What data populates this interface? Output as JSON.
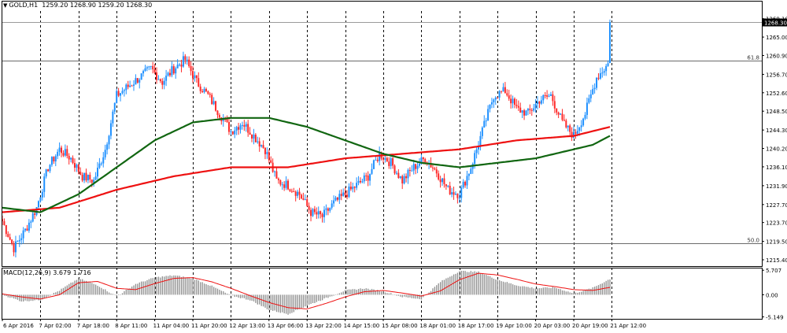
{
  "header": {
    "symbol": "GOLD,H1",
    "ohlc": "1259.20 1268.90 1259.20 1268.30"
  },
  "macd_header": {
    "label": "MACD(12,26,9) 3.679 1.716"
  },
  "chart_data": [
    {
      "type": "candlestick",
      "title": "GOLD,H1",
      "ylim": [
        1214.0,
        1270.8
      ],
      "price_ticks": [
        "1269.10",
        "1265.00",
        "1260.90",
        "1256.70",
        "1252.60",
        "1248.50",
        "1244.30",
        "1240.20",
        "1236.10",
        "1231.90",
        "1227.70",
        "1223.70",
        "1219.50",
        "1215.40"
      ],
      "current_price": "1268.30",
      "fib_levels": [
        {
          "label": "61.8",
          "value": 1259.7
        },
        {
          "label": "50.0",
          "value": 1219.0
        }
      ],
      "x_labels": [
        "6 Apr 2016",
        "7 Apr 02:00",
        "7 Apr 18:00",
        "8 Apr 11:00",
        "11 Apr 04:00",
        "11 Apr 20:00",
        "12 Apr 13:00",
        "13 Apr 06:00",
        "13 Apr 22:00",
        "14 Apr 15:00",
        "15 Apr 08:00",
        "18 Apr 01:00",
        "18 Apr 17:00",
        "19 Apr 10:00",
        "20 Apr 03:00",
        "20 Apr 19:00",
        "21 Apr 12:00"
      ],
      "anchors": [
        [
          0,
          1224
        ],
        [
          6,
          1218
        ],
        [
          12,
          1222
        ],
        [
          18,
          1227
        ],
        [
          24,
          1236
        ],
        [
          30,
          1240
        ],
        [
          36,
          1238
        ],
        [
          42,
          1234
        ],
        [
          48,
          1233
        ],
        [
          54,
          1240
        ],
        [
          60,
          1252
        ],
        [
          66,
          1254
        ],
        [
          72,
          1256
        ],
        [
          78,
          1258
        ],
        [
          84,
          1255
        ],
        [
          90,
          1258
        ],
        [
          96,
          1260
        ],
        [
          102,
          1255
        ],
        [
          108,
          1252
        ],
        [
          114,
          1248
        ],
        [
          120,
          1244
        ],
        [
          126,
          1246
        ],
        [
          132,
          1243
        ],
        [
          138,
          1240
        ],
        [
          144,
          1233
        ],
        [
          150,
          1232
        ],
        [
          156,
          1230
        ],
        [
          162,
          1226
        ],
        [
          168,
          1225
        ],
        [
          174,
          1228
        ],
        [
          180,
          1230
        ],
        [
          186,
          1232
        ],
        [
          192,
          1234
        ],
        [
          198,
          1239
        ],
        [
          204,
          1237
        ],
        [
          210,
          1233
        ],
        [
          216,
          1236
        ],
        [
          222,
          1238
        ],
        [
          228,
          1235
        ],
        [
          234,
          1231
        ],
        [
          240,
          1230
        ],
        [
          246,
          1236
        ],
        [
          252,
          1244
        ],
        [
          258,
          1252
        ],
        [
          264,
          1253
        ],
        [
          270,
          1249
        ],
        [
          276,
          1248
        ],
        [
          282,
          1251
        ],
        [
          288,
          1252
        ],
        [
          294,
          1246
        ],
        [
          300,
          1243
        ],
        [
          306,
          1248
        ],
        [
          312,
          1256
        ],
        [
          318,
          1259
        ],
        [
          319,
          1268.3
        ]
      ],
      "ma_red": [
        [
          0,
          1226
        ],
        [
          30,
          1227
        ],
        [
          60,
          1231
        ],
        [
          90,
          1234
        ],
        [
          120,
          1236
        ],
        [
          150,
          1236
        ],
        [
          180,
          1238
        ],
        [
          210,
          1239
        ],
        [
          240,
          1240
        ],
        [
          270,
          1242
        ],
        [
          300,
          1243
        ],
        [
          319,
          1245
        ]
      ],
      "ma_green": [
        [
          0,
          1227
        ],
        [
          20,
          1226
        ],
        [
          40,
          1230
        ],
        [
          60,
          1236
        ],
        [
          80,
          1242
        ],
        [
          100,
          1246
        ],
        [
          120,
          1247
        ],
        [
          140,
          1247
        ],
        [
          160,
          1245
        ],
        [
          180,
          1242
        ],
        [
          200,
          1239
        ],
        [
          220,
          1237
        ],
        [
          240,
          1236
        ],
        [
          260,
          1237
        ],
        [
          280,
          1238
        ],
        [
          300,
          1240
        ],
        [
          310,
          1241
        ],
        [
          319,
          1243
        ]
      ]
    },
    {
      "type": "bar",
      "title": "MACD(12,26,9) 3.679 1.716",
      "ylim": [
        -5.6,
        6.3
      ],
      "ticks": [
        "5.707",
        "0.00",
        "-5.149"
      ],
      "hist_anchors": [
        [
          0,
          0
        ],
        [
          10,
          -1.5
        ],
        [
          20,
          -1.2
        ],
        [
          30,
          1.0
        ],
        [
          40,
          3.8
        ],
        [
          50,
          2.2
        ],
        [
          60,
          -0.4
        ],
        [
          70,
          2.5
        ],
        [
          80,
          4.0
        ],
        [
          90,
          4.5
        ],
        [
          100,
          3.8
        ],
        [
          110,
          2.0
        ],
        [
          120,
          -0.2
        ],
        [
          130,
          -1.2
        ],
        [
          140,
          -3.5
        ],
        [
          150,
          -4.5
        ],
        [
          160,
          -2.5
        ],
        [
          170,
          -0.8
        ],
        [
          180,
          1.0
        ],
        [
          190,
          1.5
        ],
        [
          200,
          0.8
        ],
        [
          210,
          -0.5
        ],
        [
          220,
          -1.0
        ],
        [
          230,
          3.0
        ],
        [
          240,
          5.5
        ],
        [
          250,
          5.3
        ],
        [
          260,
          3.5
        ],
        [
          270,
          2.2
        ],
        [
          280,
          1.5
        ],
        [
          290,
          1.7
        ],
        [
          300,
          0.3
        ],
        [
          310,
          1.6
        ],
        [
          319,
          3.679
        ]
      ],
      "signal_anchors": [
        [
          0,
          0.2
        ],
        [
          10,
          -0.5
        ],
        [
          20,
          -1.0
        ],
        [
          30,
          0
        ],
        [
          40,
          2.8
        ],
        [
          50,
          3.1
        ],
        [
          60,
          1.5
        ],
        [
          70,
          1.2
        ],
        [
          80,
          2.6
        ],
        [
          90,
          3.8
        ],
        [
          100,
          4.0
        ],
        [
          110,
          3.0
        ],
        [
          120,
          1.5
        ],
        [
          130,
          -0.2
        ],
        [
          140,
          -1.8
        ],
        [
          150,
          -3.0
        ],
        [
          160,
          -3.3
        ],
        [
          170,
          -2.0
        ],
        [
          180,
          -0.5
        ],
        [
          190,
          0.7
        ],
        [
          200,
          1.0
        ],
        [
          210,
          0.4
        ],
        [
          220,
          -0.3
        ],
        [
          230,
          0.9
        ],
        [
          240,
          3.5
        ],
        [
          250,
          5.0
        ],
        [
          260,
          4.6
        ],
        [
          270,
          3.6
        ],
        [
          280,
          2.5
        ],
        [
          290,
          1.9
        ],
        [
          300,
          1.2
        ],
        [
          310,
          1.0
        ],
        [
          319,
          1.716
        ]
      ]
    }
  ]
}
